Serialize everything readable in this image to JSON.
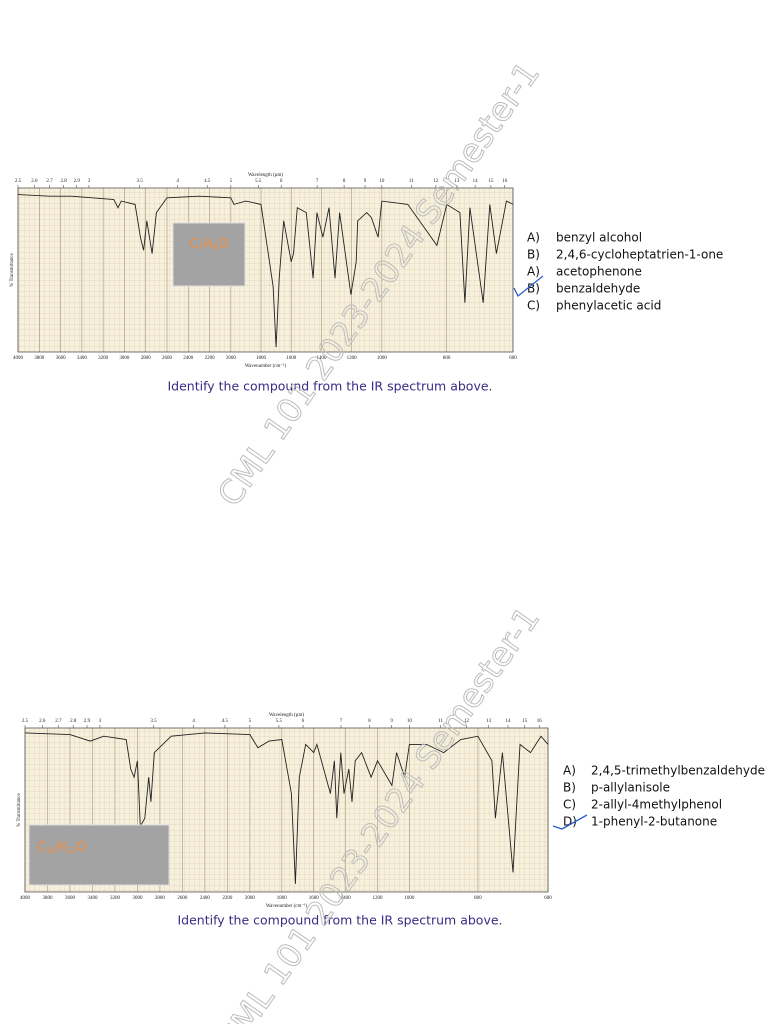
{
  "watermark": "CML 101 2023-2024 Semester-1",
  "chart_data": [
    {
      "type": "line",
      "top_axis_label": "Wavelength (µm)",
      "top_ticks": [
        2.5,
        2.6,
        2.7,
        2.8,
        2.9,
        3,
        3.5,
        4,
        4.5,
        5,
        5.5,
        6,
        7,
        8,
        9,
        10,
        11,
        12,
        13,
        14,
        15,
        16
      ],
      "xlabel": "Wavenumber (cm⁻¹)",
      "ylabel": "% Transmittance",
      "xlim": [
        4000,
        600
      ],
      "xticks": [
        4000,
        3800,
        3600,
        3400,
        3200,
        3000,
        2800,
        2600,
        2400,
        2200,
        2000,
        1800,
        1600,
        1400,
        1200,
        1000,
        800,
        600
      ],
      "ylim": [
        0,
        100
      ],
      "color": "#222222",
      "grid": true,
      "x": [
        4000,
        3700,
        3500,
        3300,
        3100,
        3060,
        3030,
        2900,
        2850,
        2820,
        2790,
        2740,
        2700,
        2600,
        2300,
        2000,
        1980,
        1900,
        1800,
        1720,
        1700,
        1680,
        1650,
        1600,
        1585,
        1560,
        1500,
        1455,
        1430,
        1390,
        1350,
        1310,
        1280,
        1205,
        1170,
        1160,
        1100,
        1070,
        1025,
        1000,
        920,
        830,
        800,
        760,
        745,
        730,
        690,
        670,
        650,
        620,
        600
      ],
      "values": [
        96,
        95,
        95,
        94,
        93,
        88,
        92,
        90,
        70,
        62,
        80,
        60,
        85,
        94,
        95,
        94,
        90,
        92,
        90,
        40,
        3,
        45,
        80,
        55,
        60,
        88,
        85,
        45,
        85,
        70,
        88,
        45,
        85,
        35,
        55,
        80,
        85,
        82,
        70,
        92,
        90,
        65,
        90,
        85,
        30,
        88,
        30,
        90,
        60,
        92,
        90
      ]
    },
    {
      "type": "line",
      "top_axis_label": "Wavelength (µm)",
      "top_ticks": [
        2.5,
        2.6,
        2.7,
        2.8,
        2.9,
        3,
        3.5,
        4,
        4.5,
        5,
        5.5,
        6,
        7,
        8,
        9,
        10,
        11,
        12,
        13,
        14,
        15,
        16
      ],
      "xlabel": "Wavenumber (cm⁻¹)",
      "ylabel": "% Transmittance",
      "xlim": [
        4000,
        600
      ],
      "xticks": [
        4000,
        3800,
        3600,
        3400,
        3200,
        3000,
        2800,
        2600,
        2400,
        2200,
        2000,
        1800,
        1600,
        1400,
        1200,
        1000,
        800,
        600
      ],
      "ylim": [
        0,
        100
      ],
      "color": "#222222",
      "grid": true,
      "x": [
        4000,
        3600,
        3420,
        3300,
        3100,
        3060,
        3030,
        3000,
        2975,
        2935,
        2900,
        2880,
        2850,
        2700,
        2400,
        2000,
        1950,
        1880,
        1800,
        1740,
        1715,
        1690,
        1650,
        1600,
        1580,
        1495,
        1470,
        1455,
        1430,
        1410,
        1380,
        1360,
        1340,
        1300,
        1240,
        1200,
        1110,
        1080,
        1030,
        1000,
        950,
        900,
        850,
        800,
        760,
        750,
        730,
        700,
        680,
        650,
        620,
        600
      ],
      "values": [
        97,
        96,
        92,
        95,
        93,
        75,
        70,
        80,
        40,
        45,
        70,
        55,
        85,
        95,
        97,
        96,
        88,
        92,
        93,
        60,
        5,
        70,
        90,
        85,
        90,
        60,
        80,
        45,
        85,
        60,
        75,
        55,
        80,
        85,
        70,
        80,
        65,
        85,
        70,
        90,
        90,
        85,
        93,
        95,
        80,
        45,
        85,
        12,
        90,
        85,
        95,
        90
      ]
    }
  ],
  "questions": [
    {
      "formula": [
        "C",
        "7",
        "H",
        "6",
        "O"
      ],
      "options": [
        {
          "letter": "A)",
          "text": "benzyl alcohol"
        },
        {
          "letter": "B)",
          "text": "2,4,6-cycloheptatrien-1-one"
        },
        {
          "letter": "A)",
          "text": "acetophenone"
        },
        {
          "letter": "B)",
          "text": "benzaldehyde"
        },
        {
          "letter": "C)",
          "text": "phenylacetic acid"
        }
      ],
      "caption": "Identify the compound from the IR spectrum above."
    },
    {
      "formula": [
        "C",
        "10",
        "H",
        "12",
        "O"
      ],
      "options": [
        {
          "letter": "A)",
          "text": "2,4,5-trimethylbenzaldehyde"
        },
        {
          "letter": "B)",
          "text": "p-allylanisole"
        },
        {
          "letter": "C)",
          "text": "2-allyl-4methylphenol"
        },
        {
          "letter": "D)",
          "text": "1-phenyl-2-butanone"
        }
      ],
      "caption": "Identify the compound from the IR spectrum above."
    }
  ]
}
